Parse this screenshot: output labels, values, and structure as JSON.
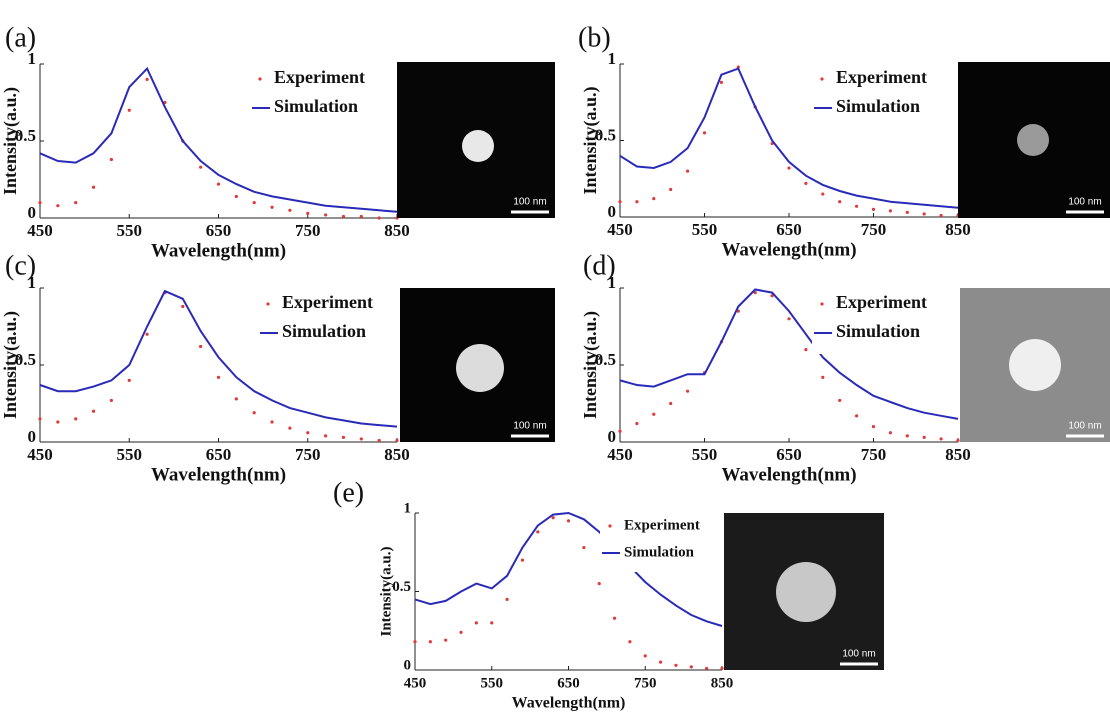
{
  "chart_data": [
    {
      "type": "line",
      "panel_label": "(a)",
      "xlabel": "Wavelength(nm)",
      "ylabel": "Intensity(a.u.)",
      "scale_bar_label": "100 nm",
      "x": [
        450,
        470,
        490,
        510,
        530,
        550,
        570,
        590,
        610,
        630,
        650,
        670,
        690,
        710,
        730,
        750,
        770,
        790,
        810,
        830,
        850
      ],
      "series": [
        {
          "name": "Experiment",
          "color": "#e03a3a",
          "values": [
            0.1,
            0.08,
            0.1,
            0.2,
            0.38,
            0.7,
            0.9,
            0.75,
            0.5,
            0.33,
            0.22,
            0.14,
            0.1,
            0.07,
            0.05,
            0.03,
            0.02,
            0.01,
            0.01,
            0,
            0
          ]
        },
        {
          "name": "Simulation",
          "color": "#2a2ab8",
          "values": [
            0.42,
            0.37,
            0.36,
            0.42,
            0.55,
            0.85,
            0.97,
            0.72,
            0.5,
            0.37,
            0.28,
            0.22,
            0.17,
            0.14,
            0.12,
            0.1,
            0.08,
            0.07,
            0.06,
            0.05,
            0.04
          ]
        }
      ],
      "xlim": [
        450,
        850
      ],
      "ylim": [
        0,
        1
      ],
      "xticks": [
        450,
        550,
        650,
        750,
        850
      ],
      "yticks": [
        0,
        0.5,
        1
      ]
    },
    {
      "type": "line",
      "panel_label": "(b)",
      "xlabel": "Wavelength(nm)",
      "ylabel": "Intensity(a.u.)",
      "scale_bar_label": "100 nm",
      "x": [
        450,
        470,
        490,
        510,
        530,
        550,
        570,
        590,
        610,
        630,
        650,
        670,
        690,
        710,
        730,
        750,
        770,
        790,
        810,
        830,
        850
      ],
      "series": [
        {
          "name": "Experiment",
          "color": "#e03a3a",
          "values": [
            0.1,
            0.1,
            0.12,
            0.18,
            0.3,
            0.55,
            0.88,
            0.98,
            0.72,
            0.48,
            0.32,
            0.22,
            0.15,
            0.1,
            0.07,
            0.05,
            0.04,
            0.03,
            0.02,
            0.01,
            0.01
          ]
        },
        {
          "name": "Simulation",
          "color": "#2a2ab8",
          "values": [
            0.4,
            0.33,
            0.32,
            0.36,
            0.45,
            0.65,
            0.93,
            0.97,
            0.72,
            0.5,
            0.36,
            0.27,
            0.21,
            0.17,
            0.14,
            0.12,
            0.1,
            0.09,
            0.08,
            0.07,
            0.06
          ]
        }
      ],
      "xlim": [
        450,
        850
      ],
      "ylim": [
        0,
        1
      ],
      "xticks": [
        450,
        550,
        650,
        750,
        850
      ],
      "yticks": [
        0,
        0.5,
        1
      ]
    },
    {
      "type": "line",
      "panel_label": "(c)",
      "xlabel": "Wavelength(nm)",
      "ylabel": "Intensity(a.u.)",
      "scale_bar_label": "100 nm",
      "x": [
        450,
        470,
        490,
        510,
        530,
        550,
        570,
        590,
        610,
        630,
        650,
        670,
        690,
        710,
        730,
        750,
        770,
        790,
        810,
        830,
        850
      ],
      "series": [
        {
          "name": "Experiment",
          "color": "#e03a3a",
          "values": [
            0.15,
            0.13,
            0.15,
            0.2,
            0.27,
            0.4,
            0.7,
            0.97,
            0.88,
            0.62,
            0.42,
            0.28,
            0.19,
            0.13,
            0.09,
            0.06,
            0.04,
            0.03,
            0.02,
            0.01,
            0.01
          ]
        },
        {
          "name": "Simulation",
          "color": "#2a2ab8",
          "values": [
            0.37,
            0.33,
            0.33,
            0.36,
            0.4,
            0.5,
            0.75,
            0.98,
            0.93,
            0.72,
            0.55,
            0.42,
            0.33,
            0.27,
            0.22,
            0.19,
            0.16,
            0.14,
            0.12,
            0.11,
            0.1
          ]
        }
      ],
      "xlim": [
        450,
        850
      ],
      "ylim": [
        0,
        1
      ],
      "xticks": [
        450,
        550,
        650,
        750,
        850
      ],
      "yticks": [
        0,
        0.5,
        1
      ]
    },
    {
      "type": "line",
      "panel_label": "(d)",
      "xlabel": "Wavelength(nm)",
      "ylabel": "Intensity(a.u.)",
      "scale_bar_label": "100 nm",
      "x": [
        450,
        470,
        490,
        510,
        530,
        550,
        570,
        590,
        610,
        630,
        650,
        670,
        690,
        710,
        730,
        750,
        770,
        790,
        810,
        830,
        850
      ],
      "series": [
        {
          "name": "Experiment",
          "color": "#e03a3a",
          "values": [
            0.07,
            0.12,
            0.18,
            0.25,
            0.33,
            0.45,
            0.65,
            0.85,
            0.97,
            0.95,
            0.8,
            0.6,
            0.42,
            0.27,
            0.17,
            0.1,
            0.06,
            0.04,
            0.03,
            0.02,
            0.01
          ]
        },
        {
          "name": "Simulation",
          "color": "#2a2ab8",
          "values": [
            0.4,
            0.37,
            0.36,
            0.4,
            0.44,
            0.44,
            0.65,
            0.88,
            0.99,
            0.97,
            0.85,
            0.7,
            0.55,
            0.45,
            0.37,
            0.3,
            0.26,
            0.22,
            0.19,
            0.17,
            0.15
          ]
        }
      ],
      "xlim": [
        450,
        850
      ],
      "ylim": [
        0,
        1
      ],
      "xticks": [
        450,
        550,
        650,
        750,
        850
      ],
      "yticks": [
        0,
        0.5,
        1
      ]
    },
    {
      "type": "line",
      "panel_label": "(e)",
      "xlabel": "Wavelength(nm)",
      "ylabel": "Intensity(a.u.)",
      "scale_bar_label": "100 nm",
      "x": [
        450,
        470,
        490,
        510,
        530,
        550,
        570,
        590,
        610,
        630,
        650,
        670,
        690,
        710,
        730,
        750,
        770,
        790,
        810,
        830,
        850
      ],
      "series": [
        {
          "name": "Experiment",
          "color": "#e03a3a",
          "values": [
            0.18,
            0.18,
            0.19,
            0.24,
            0.3,
            0.3,
            0.45,
            0.7,
            0.88,
            0.97,
            0.95,
            0.78,
            0.55,
            0.33,
            0.18,
            0.09,
            0.05,
            0.03,
            0.02,
            0.01,
            0.01
          ]
        },
        {
          "name": "Simulation",
          "color": "#2a2ab8",
          "values": [
            0.45,
            0.42,
            0.44,
            0.5,
            0.55,
            0.52,
            0.6,
            0.78,
            0.92,
            0.99,
            1.0,
            0.96,
            0.88,
            0.77,
            0.66,
            0.56,
            0.48,
            0.41,
            0.35,
            0.31,
            0.28
          ]
        }
      ],
      "xlim": [
        450,
        850
      ],
      "ylim": [
        0,
        1
      ],
      "xticks": [
        450,
        550,
        650,
        750,
        850
      ],
      "yticks": [
        0,
        0.5,
        1
      ]
    }
  ]
}
